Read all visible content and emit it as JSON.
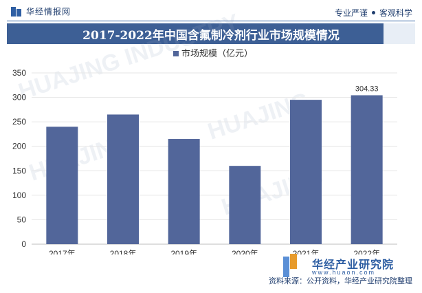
{
  "header": {
    "brand": "华经情报网",
    "tags": [
      "专业严谨",
      "客观科学"
    ]
  },
  "chart_data": {
    "type": "bar",
    "title": "2017-2022年中国含氟制冷剂行业市场规模情况",
    "categories": [
      "2017年",
      "2018年",
      "2019年",
      "2020年",
      "2021年",
      "2022年"
    ],
    "series": [
      {
        "name": "市场规模（亿元）",
        "values": [
          240,
          265,
          215,
          160,
          295,
          304.33
        ],
        "color": "#52669a"
      }
    ],
    "data_labels": [
      null,
      null,
      null,
      null,
      null,
      "304.33"
    ],
    "yticks": [
      0,
      50,
      100,
      150,
      200,
      250,
      300,
      350
    ],
    "ylim": [
      0,
      350
    ],
    "grid": true,
    "legend_position": "top"
  },
  "footer": {
    "brand": "华经产业研究院",
    "url": "www.huaon.com",
    "source": "资料来源：公开资料，华经产业研究院整理"
  }
}
